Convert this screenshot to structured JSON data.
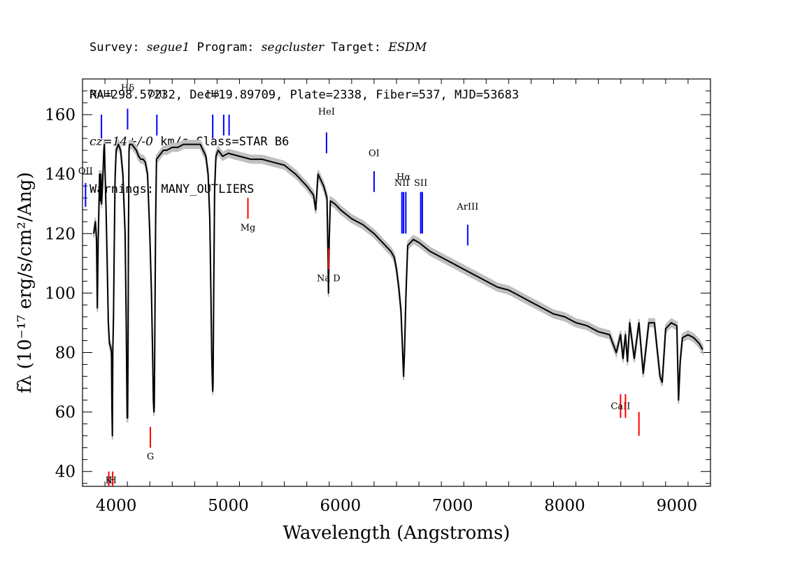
{
  "header": {
    "line1": {
      "survey_label": "Survey: ",
      "survey": "segue1",
      "program_label": " Program: ",
      "program": "segcluster",
      "target_label": " Target: ",
      "target": "ESDM"
    },
    "line2": "RA=298.57232, Dec=19.89709, Plate=2338, Fiber=537, MJD=53683",
    "line3": {
      "cz": "cz=14+/-0",
      "rest": " km/s Class=STAR B6"
    },
    "line4": "Warnings: MANY_OUTLIERS"
  },
  "colors": {
    "emission": "#0000ff",
    "absorption": "#ff0000",
    "flux": "#000000",
    "error_band": "#c0c0c0"
  },
  "chart_data": {
    "type": "line",
    "xlabel": "Wavelength (Angstroms)",
    "ylabel": "fλ (10⁻¹⁷ erg/s/cm²/Ang)",
    "xlim": [
      3700,
      9300
    ],
    "ylim": [
      35,
      172
    ],
    "x_ticks": [
      4000,
      5000,
      6000,
      7000,
      8000,
      9000
    ],
    "y_ticks": [
      40,
      60,
      80,
      100,
      120,
      140,
      160
    ],
    "grid": false,
    "series": [
      {
        "x": [
          3800,
          3815,
          3825,
          3832,
          3840,
          3846,
          3852,
          3858,
          3864,
          3870,
          3880,
          3890,
          3895,
          3900,
          3910,
          3920,
          3930,
          3940,
          3950,
          3958,
          3962,
          3966,
          3970,
          3976,
          3982,
          3990,
          4000,
          4020,
          4040,
          4060,
          4080,
          4090,
          4095,
          4098,
          4102,
          4106,
          4110,
          4115,
          4120,
          4140,
          4160,
          4180,
          4200,
          4220,
          4240,
          4260,
          4280,
          4300,
          4315,
          4325,
          4332,
          4337,
          4340,
          4343,
          4347,
          4352,
          4360,
          4380,
          4400,
          4420,
          4450,
          4500,
          4550,
          4600,
          4650,
          4700,
          4750,
          4800,
          4820,
          4835,
          4845,
          4852,
          4858,
          4861,
          4864,
          4870,
          4878,
          4890,
          4910,
          4950,
          5000,
          5100,
          5200,
          5300,
          5400,
          5500,
          5600,
          5700,
          5760,
          5780,
          5800,
          5850,
          5880,
          5890,
          5893,
          5896,
          5900,
          5910,
          5950,
          6000,
          6100,
          6200,
          6300,
          6350,
          6400,
          6450,
          6480,
          6500,
          6520,
          6540,
          6555,
          6563,
          6571,
          6585,
          6600,
          6650,
          6700,
          6800,
          6900,
          7000,
          7100,
          7200,
          7300,
          7400,
          7500,
          7600,
          7700,
          7800,
          7900,
          8000,
          8100,
          8200,
          8300,
          8400,
          8460,
          8498,
          8520,
          8542,
          8560,
          8580,
          8620,
          8662,
          8700,
          8750,
          8800,
          8850,
          8870,
          8900,
          8950,
          9000,
          9015,
          9030,
          9050,
          9100,
          9150,
          9200,
          9230
        ],
        "y": [
          120,
          124,
          118,
          95,
          118,
          128,
          140,
          131,
          140,
          130,
          138,
          148,
          150,
          142,
          128,
          110,
          90,
          83,
          82,
          80,
          62,
          52,
          80,
          92,
          112,
          138,
          148,
          150,
          148,
          140,
          120,
          90,
          70,
          58,
          58,
          80,
          120,
          148,
          150,
          150,
          149,
          148,
          146,
          145,
          145,
          144,
          140,
          120,
          100,
          80,
          64,
          60,
          62,
          75,
          100,
          125,
          145,
          146,
          147,
          148,
          148,
          149,
          149,
          150,
          150,
          150,
          150,
          146,
          140,
          125,
          100,
          80,
          70,
          67,
          70,
          100,
          135,
          146,
          148,
          146,
          147,
          146,
          145,
          145,
          144,
          143,
          140,
          136,
          133,
          128,
          140,
          136,
          132,
          110,
          100,
          106,
          118,
          131,
          130,
          128,
          125,
          123,
          120,
          118,
          116,
          114,
          112,
          108,
          102,
          94,
          80,
          72,
          80,
          100,
          116,
          118,
          117,
          114,
          112,
          110,
          108,
          106,
          104,
          102,
          101,
          99,
          97,
          95,
          93,
          92,
          90,
          89,
          87,
          86,
          80,
          86,
          78,
          86,
          77,
          90,
          78,
          90,
          73,
          90,
          90,
          72,
          70,
          88,
          90,
          89,
          64,
          77,
          85,
          86,
          85,
          83,
          81
        ]
      }
    ],
    "lines": [
      {
        "name": "NeIII",
        "wave": 3869,
        "kind": "emission"
      },
      {
        "name": "Hδ",
        "wave": 4102,
        "kind": "emission"
      },
      {
        "name": "OIII",
        "wave": 4363,
        "kind": "emission"
      },
      {
        "name": "Hβ",
        "wave": 4861,
        "kind": "emission"
      },
      {
        "name": "OIII",
        "wave": 4959,
        "kind": "emission"
      },
      {
        "name": "OIII",
        "wave": 5007,
        "kind": "emission"
      },
      {
        "name": "HeI",
        "wave": 5876,
        "kind": "emission"
      },
      {
        "name": "OI",
        "wave": 6300,
        "kind": "emission"
      },
      {
        "name": "NII",
        "wave": 6548,
        "kind": "emission"
      },
      {
        "name": "Hα",
        "wave": 6563,
        "kind": "emission"
      },
      {
        "name": "NII",
        "wave": 6583,
        "kind": "emission"
      },
      {
        "name": "SII",
        "wave": 6716,
        "kind": "emission"
      },
      {
        "name": "SII",
        "wave": 6730,
        "kind": "emission"
      },
      {
        "name": "ArIII",
        "wave": 7135,
        "kind": "emission"
      },
      {
        "name": "OII",
        "wave": 3727,
        "kind": "emission"
      },
      {
        "name": "K",
        "wave": 3934,
        "kind": "absorption"
      },
      {
        "name": "H",
        "wave": 3969,
        "kind": "absorption"
      },
      {
        "name": "G",
        "wave": 4305,
        "kind": "absorption"
      },
      {
        "name": "Mg",
        "wave": 5175,
        "kind": "absorption"
      },
      {
        "name": "Na  D",
        "wave": 5894,
        "kind": "absorption"
      },
      {
        "name": "CaII",
        "wave": 8498,
        "kind": "absorption"
      },
      {
        "name": "CaII",
        "wave": 8542,
        "kind": "absorption"
      },
      {
        "name": "CaII",
        "wave": 8662,
        "kind": "absorption"
      }
    ]
  }
}
